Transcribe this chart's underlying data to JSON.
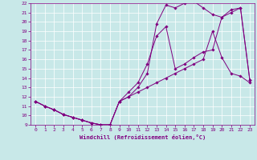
{
  "xlabel": "Windchill (Refroidissement éolien,°C)",
  "bg_color": "#c8e8e8",
  "line_color": "#800080",
  "xlim": [
    -0.5,
    23.5
  ],
  "ylim": [
    9,
    22
  ],
  "xticks": [
    0,
    1,
    2,
    3,
    4,
    5,
    6,
    7,
    8,
    9,
    10,
    11,
    12,
    13,
    14,
    15,
    16,
    17,
    18,
    19,
    20,
    21,
    22,
    23
  ],
  "yticks": [
    9,
    10,
    11,
    12,
    13,
    14,
    15,
    16,
    17,
    18,
    19,
    20,
    21,
    22
  ],
  "line1_x": [
    0,
    1,
    2,
    3,
    4,
    5,
    6,
    7,
    8,
    9,
    10,
    11,
    12,
    13,
    14,
    15,
    16,
    17,
    18,
    19,
    20,
    21,
    22,
    23
  ],
  "line1_y": [
    11.5,
    11.0,
    10.6,
    10.1,
    9.8,
    9.5,
    9.2,
    9.0,
    9.0,
    11.5,
    12.0,
    12.5,
    13.0,
    13.5,
    14.0,
    14.5,
    15.0,
    15.5,
    16.0,
    19.0,
    16.2,
    14.5,
    14.2,
    13.5
  ],
  "line2_x": [
    0,
    1,
    2,
    3,
    4,
    5,
    6,
    7,
    8,
    9,
    10,
    11,
    12,
    13,
    14,
    15,
    16,
    17,
    18,
    19,
    20,
    21,
    22,
    23
  ],
  "line2_y": [
    11.5,
    11.0,
    10.6,
    10.1,
    9.8,
    9.5,
    9.2,
    9.0,
    9.0,
    11.5,
    12.5,
    13.5,
    15.5,
    18.5,
    19.5,
    15.0,
    15.5,
    16.2,
    16.8,
    17.0,
    20.5,
    21.3,
    21.5,
    13.8
  ],
  "line3_x": [
    0,
    1,
    2,
    3,
    4,
    5,
    6,
    7,
    8,
    9,
    10,
    11,
    12,
    13,
    14,
    15,
    16,
    17,
    18,
    19,
    20,
    21,
    22,
    23
  ],
  "line3_y": [
    11.5,
    11.0,
    10.6,
    10.1,
    9.8,
    9.5,
    9.2,
    9.0,
    9.0,
    11.5,
    12.0,
    13.0,
    14.5,
    19.8,
    21.8,
    21.5,
    22.0,
    22.2,
    21.5,
    20.8,
    20.5,
    21.0,
    21.5,
    13.8
  ]
}
